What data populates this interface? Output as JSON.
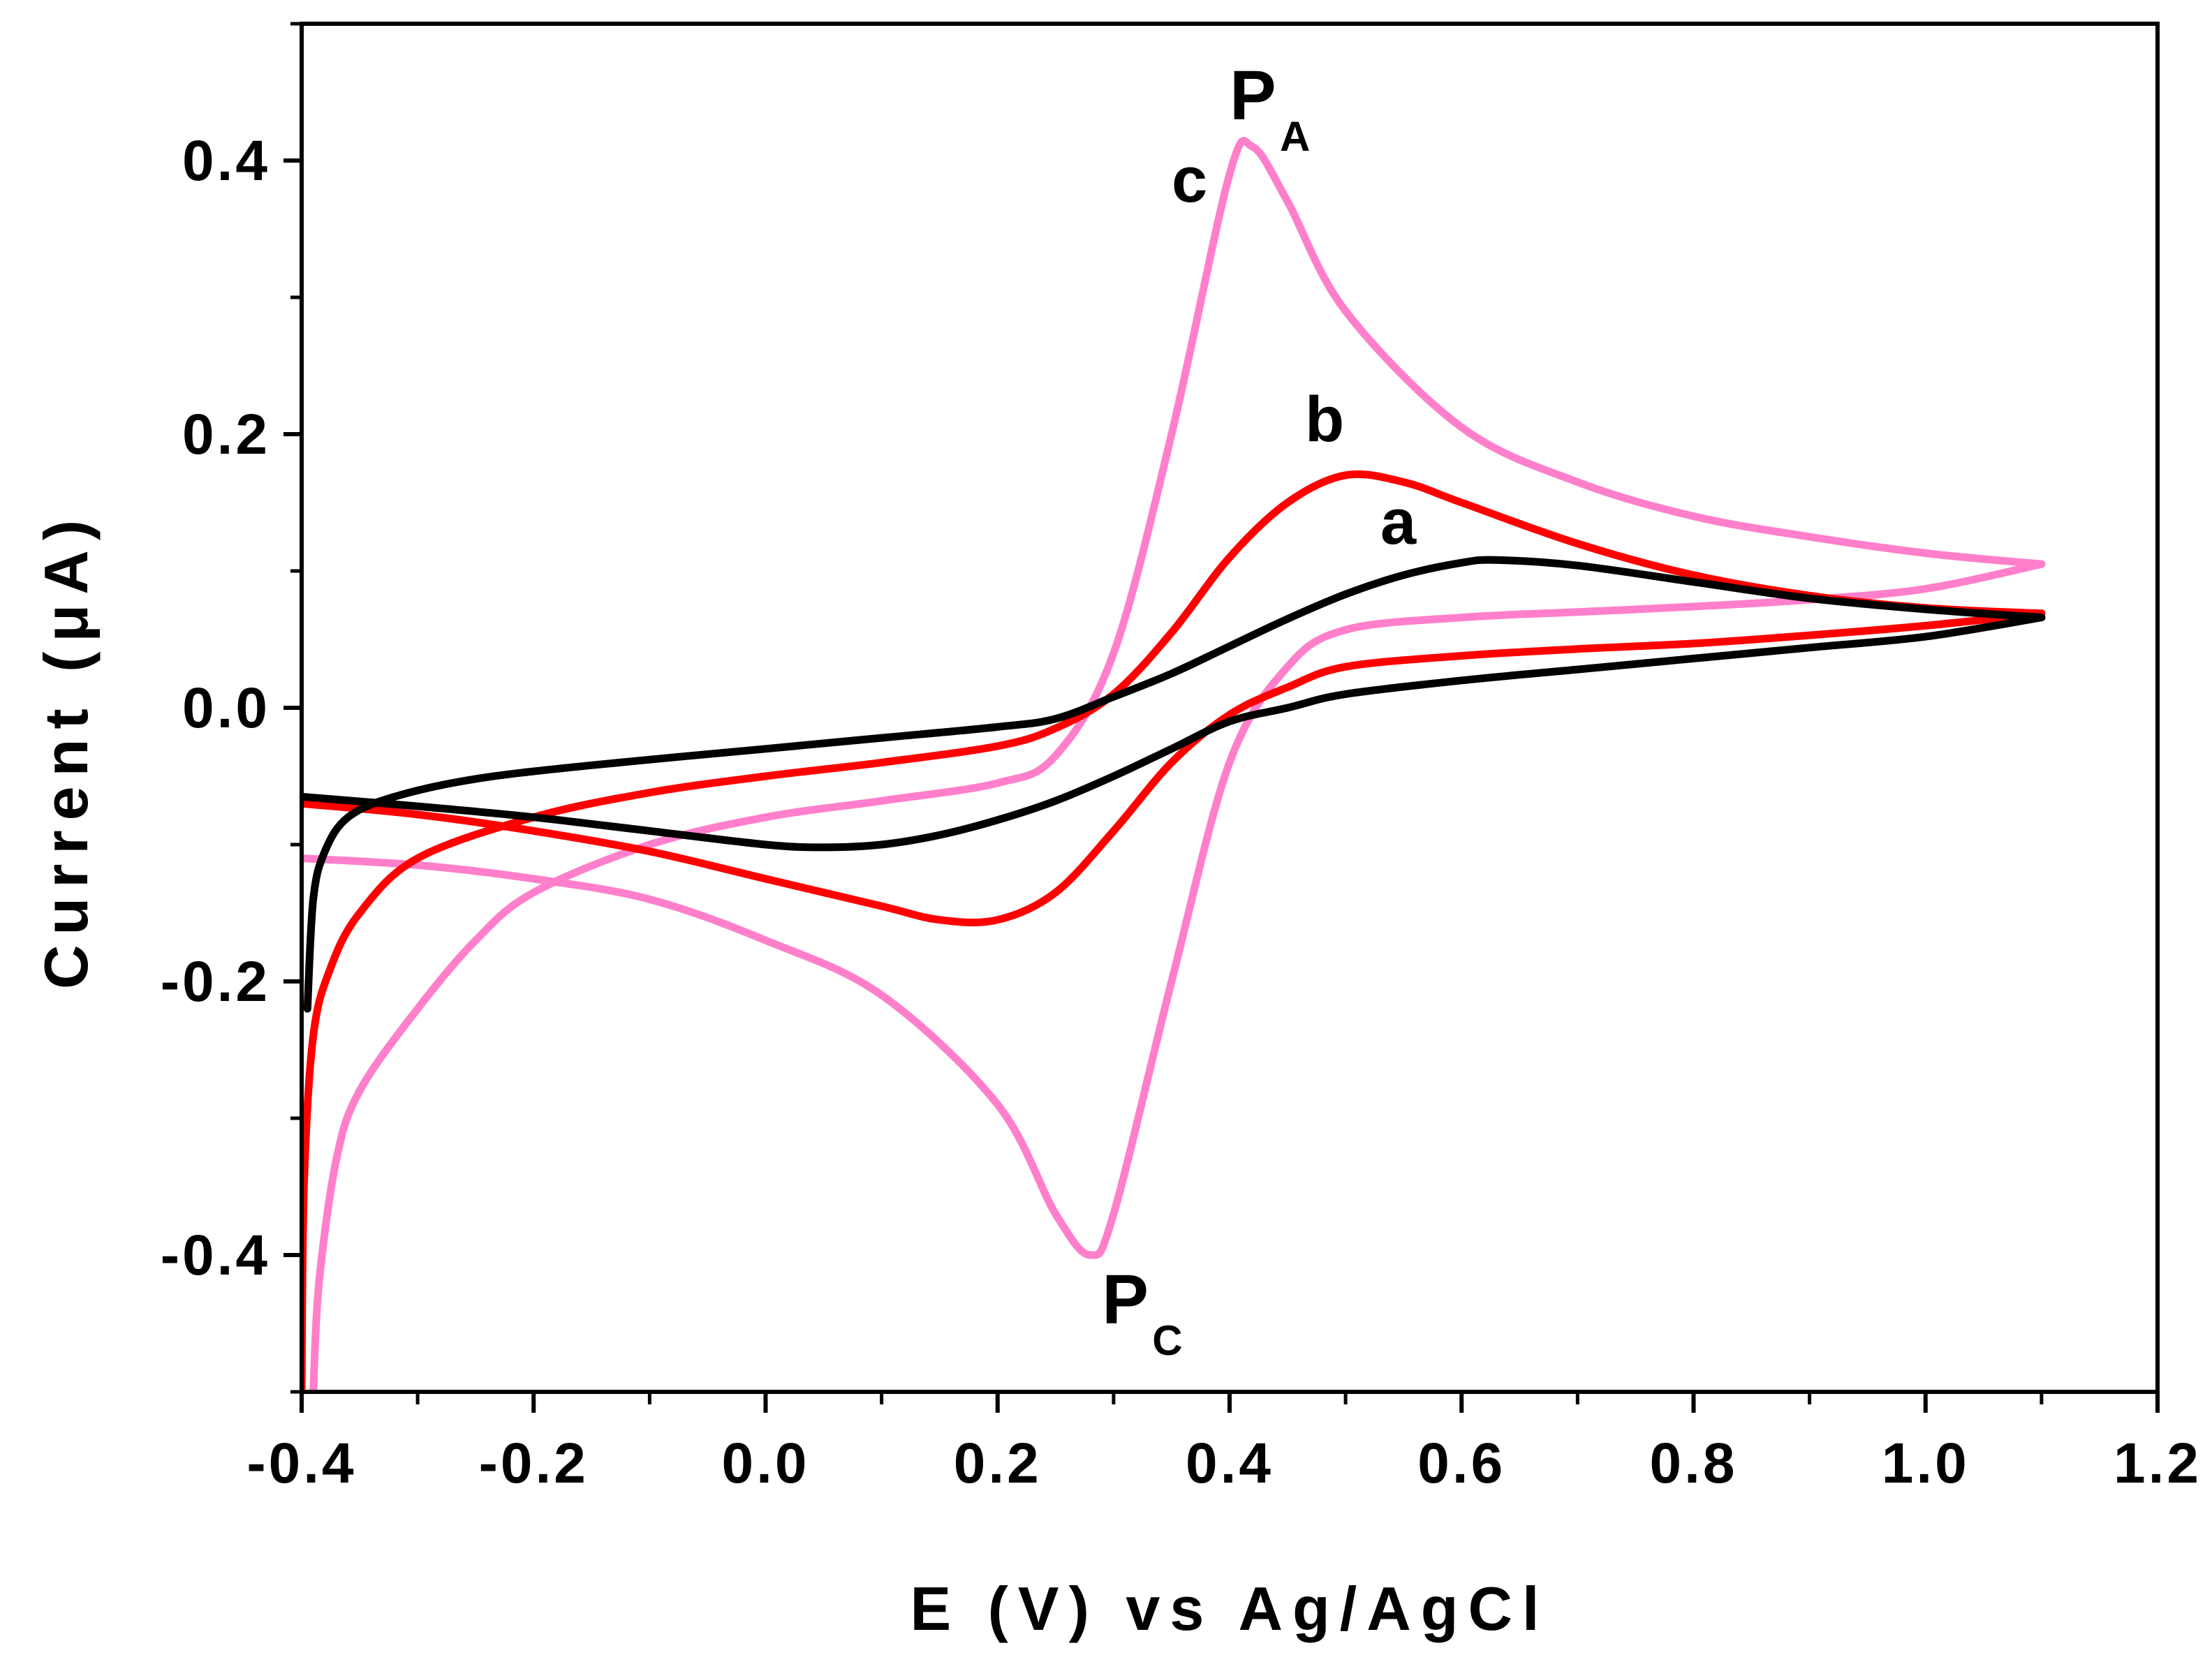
{
  "chart_data": {
    "type": "line",
    "title": "",
    "xlabel": "E (V) vs Ag/AgCl",
    "ylabel": "Current (μA)",
    "xlim": [
      -0.4,
      1.2
    ],
    "ylim": [
      -0.5,
      0.5
    ],
    "x_ticks": [
      "-0.4",
      "-0.2",
      "0.0",
      "0.2",
      "0.4",
      "0.6",
      "0.8",
      "1.0",
      "1.2"
    ],
    "y_ticks": [
      "0.4",
      "0.2",
      "0.0",
      "-0.2",
      "-0.4"
    ],
    "grid": false,
    "series": [
      {
        "name": "a",
        "color": "#000000",
        "anodic": [
          [
            -0.395,
            -0.22
          ],
          [
            -0.39,
            -0.14
          ],
          [
            -0.38,
            -0.105
          ],
          [
            -0.36,
            -0.08
          ],
          [
            -0.32,
            -0.065
          ],
          [
            -0.25,
            -0.052
          ],
          [
            -0.15,
            -0.042
          ],
          [
            0.0,
            -0.03
          ],
          [
            0.1,
            -0.022
          ],
          [
            0.2,
            -0.014
          ],
          [
            0.25,
            -0.008
          ],
          [
            0.3,
            0.008
          ],
          [
            0.35,
            0.025
          ],
          [
            0.4,
            0.045
          ],
          [
            0.45,
            0.065
          ],
          [
            0.5,
            0.083
          ],
          [
            0.55,
            0.097
          ],
          [
            0.6,
            0.106
          ],
          [
            0.63,
            0.108
          ],
          [
            0.7,
            0.104
          ],
          [
            0.8,
            0.092
          ],
          [
            0.9,
            0.08
          ],
          [
            1.0,
            0.072
          ],
          [
            1.1,
            0.066
          ]
        ],
        "cathodic": [
          [
            1.1,
            0.066
          ],
          [
            1.0,
            0.052
          ],
          [
            0.9,
            0.044
          ],
          [
            0.8,
            0.036
          ],
          [
            0.7,
            0.028
          ],
          [
            0.6,
            0.02
          ],
          [
            0.5,
            0.01
          ],
          [
            0.45,
            0.0
          ],
          [
            0.4,
            -0.01
          ],
          [
            0.35,
            -0.03
          ],
          [
            0.3,
            -0.05
          ],
          [
            0.25,
            -0.068
          ],
          [
            0.2,
            -0.082
          ],
          [
            0.15,
            -0.093
          ],
          [
            0.1,
            -0.1
          ],
          [
            0.05,
            -0.102
          ],
          [
            0.0,
            -0.1
          ],
          [
            -0.1,
            -0.09
          ],
          [
            -0.2,
            -0.08
          ],
          [
            -0.3,
            -0.072
          ],
          [
            -0.4,
            -0.065
          ]
        ]
      },
      {
        "name": "b",
        "color": "#ff0000",
        "anodic": [
          [
            -0.4,
            -0.5
          ],
          [
            -0.398,
            -0.35
          ],
          [
            -0.39,
            -0.24
          ],
          [
            -0.375,
            -0.19
          ],
          [
            -0.35,
            -0.15
          ],
          [
            -0.3,
            -0.11
          ],
          [
            -0.2,
            -0.08
          ],
          [
            -0.1,
            -0.062
          ],
          [
            0.0,
            -0.05
          ],
          [
            0.1,
            -0.04
          ],
          [
            0.2,
            -0.028
          ],
          [
            0.25,
            -0.015
          ],
          [
            0.3,
            0.01
          ],
          [
            0.35,
            0.055
          ],
          [
            0.4,
            0.11
          ],
          [
            0.45,
            0.15
          ],
          [
            0.5,
            0.17
          ],
          [
            0.55,
            0.165
          ],
          [
            0.6,
            0.15
          ],
          [
            0.7,
            0.12
          ],
          [
            0.8,
            0.097
          ],
          [
            0.9,
            0.082
          ],
          [
            1.0,
            0.073
          ],
          [
            1.1,
            0.069
          ]
        ],
        "cathodic": [
          [
            1.1,
            0.069
          ],
          [
            1.0,
            0.06
          ],
          [
            0.9,
            0.053
          ],
          [
            0.8,
            0.047
          ],
          [
            0.7,
            0.043
          ],
          [
            0.6,
            0.038
          ],
          [
            0.5,
            0.03
          ],
          [
            0.45,
            0.015
          ],
          [
            0.4,
            -0.005
          ],
          [
            0.35,
            -0.04
          ],
          [
            0.3,
            -0.09
          ],
          [
            0.25,
            -0.135
          ],
          [
            0.2,
            -0.155
          ],
          [
            0.15,
            -0.155
          ],
          [
            0.1,
            -0.145
          ],
          [
            0.0,
            -0.125
          ],
          [
            -0.1,
            -0.105
          ],
          [
            -0.2,
            -0.09
          ],
          [
            -0.3,
            -0.078
          ],
          [
            -0.4,
            -0.07
          ]
        ]
      },
      {
        "name": "c",
        "color": "#ff7fcb",
        "anodic": [
          [
            -0.39,
            -0.5
          ],
          [
            -0.385,
            -0.42
          ],
          [
            -0.37,
            -0.33
          ],
          [
            -0.35,
            -0.28
          ],
          [
            -0.3,
            -0.22
          ],
          [
            -0.25,
            -0.17
          ],
          [
            -0.2,
            -0.135
          ],
          [
            -0.1,
            -0.1
          ],
          [
            0.0,
            -0.08
          ],
          [
            0.1,
            -0.068
          ],
          [
            0.2,
            -0.055
          ],
          [
            0.25,
            -0.035
          ],
          [
            0.3,
            0.04
          ],
          [
            0.35,
            0.2
          ],
          [
            0.4,
            0.39
          ],
          [
            0.42,
            0.41
          ],
          [
            0.45,
            0.37
          ],
          [
            0.5,
            0.29
          ],
          [
            0.6,
            0.205
          ],
          [
            0.7,
            0.165
          ],
          [
            0.8,
            0.14
          ],
          [
            0.9,
            0.125
          ],
          [
            1.0,
            0.113
          ],
          [
            1.1,
            0.105
          ]
        ],
        "cathodic": [
          [
            1.1,
            0.105
          ],
          [
            1.0,
            0.087
          ],
          [
            0.9,
            0.079
          ],
          [
            0.8,
            0.074
          ],
          [
            0.7,
            0.07
          ],
          [
            0.6,
            0.066
          ],
          [
            0.5,
            0.057
          ],
          [
            0.45,
            0.03
          ],
          [
            0.4,
            -0.04
          ],
          [
            0.35,
            -0.2
          ],
          [
            0.3,
            -0.37
          ],
          [
            0.28,
            -0.4
          ],
          [
            0.25,
            -0.37
          ],
          [
            0.2,
            -0.29
          ],
          [
            0.1,
            -0.21
          ],
          [
            0.0,
            -0.17
          ],
          [
            -0.1,
            -0.14
          ],
          [
            -0.2,
            -0.125
          ],
          [
            -0.3,
            -0.115
          ],
          [
            -0.4,
            -0.11
          ]
        ]
      }
    ],
    "annotations": [
      {
        "text": "a",
        "x": 0.53,
        "y": 0.12
      },
      {
        "text": "b",
        "x": 0.465,
        "y": 0.195
      },
      {
        "text": "c",
        "x": 0.35,
        "y": 0.37
      },
      {
        "text": "P",
        "sub": "A",
        "x": 0.4,
        "y": 0.43
      },
      {
        "text": "P",
        "sub": "C",
        "x": 0.29,
        "y": -0.45
      }
    ]
  }
}
